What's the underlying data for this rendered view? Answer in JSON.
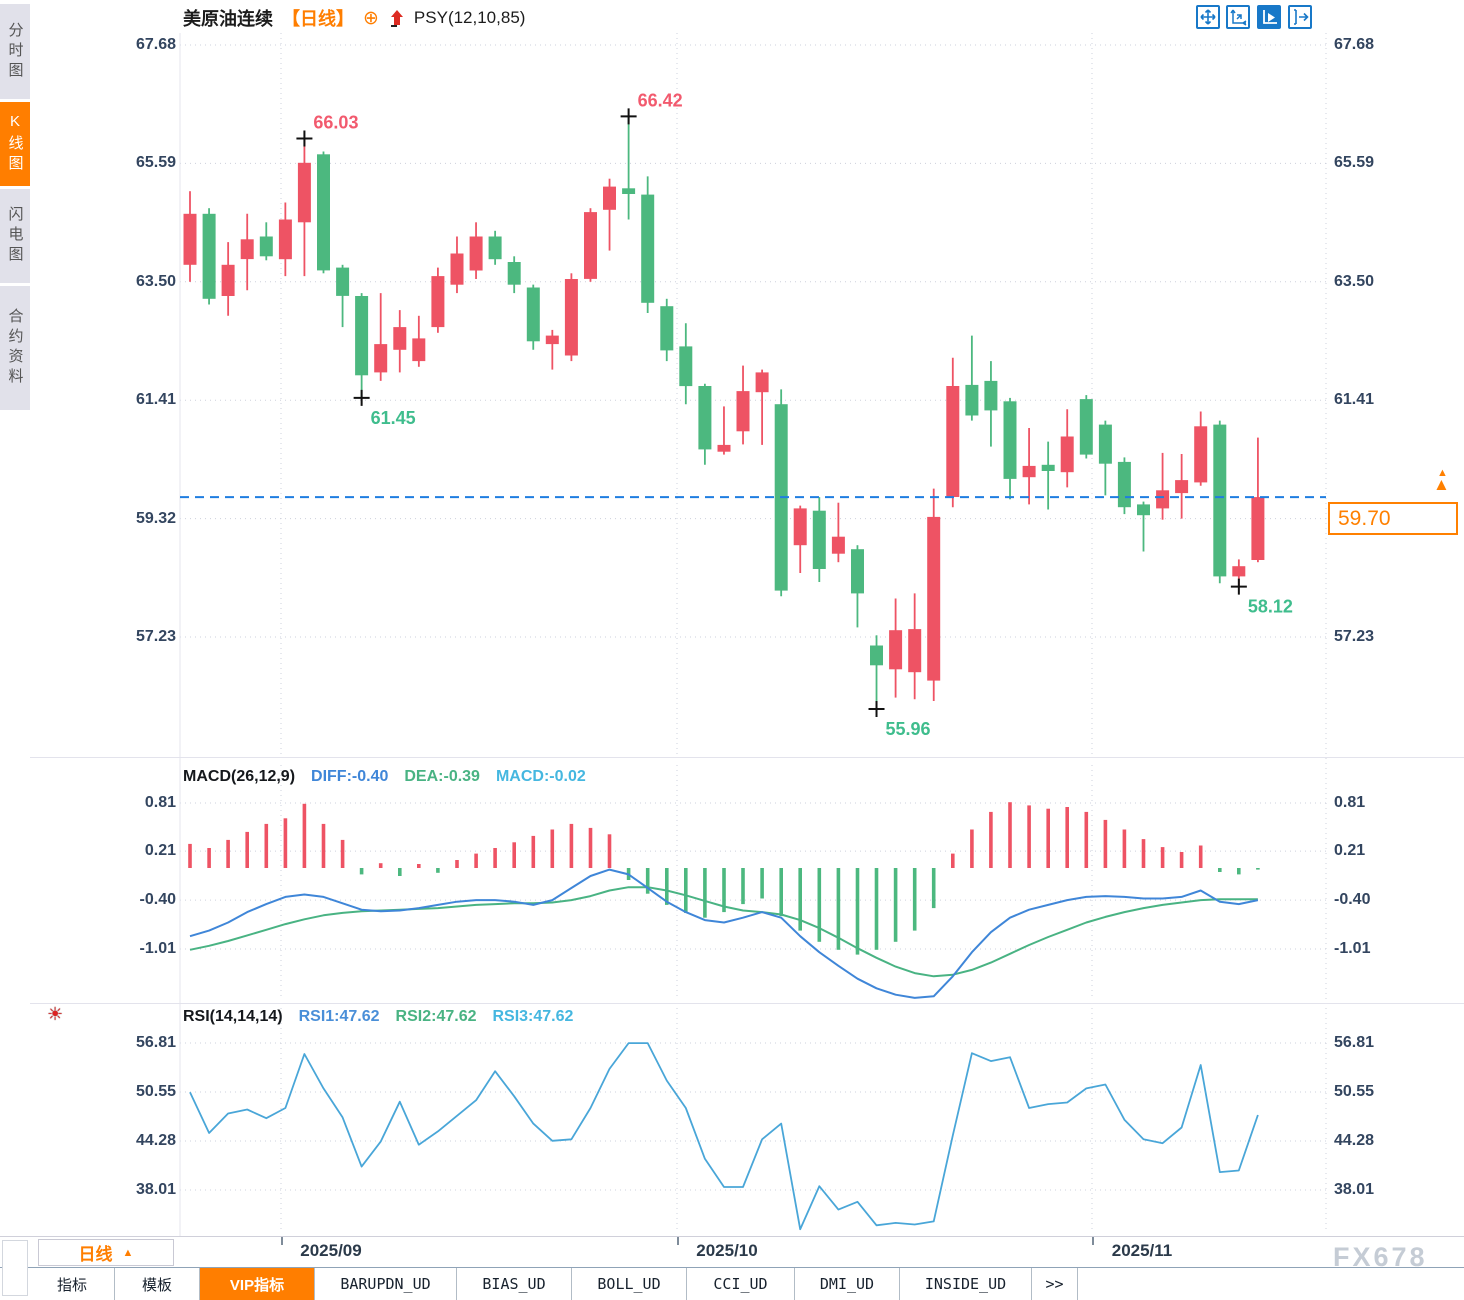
{
  "header": {
    "symbol": "美原油连续",
    "period_tag": "【日线】",
    "indicator": "PSY(12,10,85)"
  },
  "sidebar": {
    "items": [
      {
        "label": "分时图",
        "active": false
      },
      {
        "label": "K线图",
        "active": true
      },
      {
        "label": "闪电图",
        "active": false
      },
      {
        "label": "合约资料",
        "active": false
      }
    ]
  },
  "toolbar": {
    "icons": [
      "pan-icon",
      "axis-scale-icon",
      "chart-play-icon",
      "export-right-icon"
    ],
    "active_index": 2
  },
  "last_price": {
    "value": "59.70"
  },
  "price_axis": [
    "67.68",
    "65.59",
    "63.50",
    "61.41",
    "59.32",
    "57.23"
  ],
  "macd": {
    "title": "MACD(26,12,9)",
    "diff_label": "DIFF:-0.40",
    "dea_label": "DEA:-0.39",
    "macd_label": "MACD:-0.02",
    "axis": [
      "0.81",
      "0.21",
      "-0.40",
      "-1.01"
    ]
  },
  "rsi": {
    "title": "RSI(14,14,14)",
    "rsi1_label": "RSI1:47.62",
    "rsi2_label": "RSI2:47.62",
    "rsi3_label": "RSI3:47.62",
    "axis": [
      "56.81",
      "50.55",
      "44.28",
      "38.01"
    ]
  },
  "time_axis": {
    "period_label": "日线",
    "labels": [
      "2025/09",
      "2025/10",
      "2025/11"
    ]
  },
  "tabs": {
    "items": [
      "指标",
      "模板",
      "VIP指标",
      "BARUPDN_UD",
      "BIAS_UD",
      "BOLL_UD",
      "CCI_UD",
      "DMI_UD",
      "INSIDE_UD",
      ">>"
    ],
    "active_index": 2
  },
  "watermark": "FX678",
  "colors": {
    "up": "#ee5364",
    "down": "#4cb87f",
    "accent_orange": "#ff7e00",
    "dash_blue": "#1f7de0",
    "diff_blue": "#3f86d8",
    "dea_green": "#49b383",
    "macd_cyan": "#45b7e0",
    "rsi1": "#4a8fd8",
    "rsi2": "#49b383",
    "rsi3": "#49a6d8",
    "annotation_red": "#f25a6e",
    "annotation_green": "#3fbd8d"
  },
  "annotations": [
    {
      "text": "66.03",
      "index": 6,
      "at": "high"
    },
    {
      "text": "61.45",
      "index": 9,
      "at": "low"
    },
    {
      "text": "66.42",
      "index": 23,
      "at": "high"
    },
    {
      "text": "55.96",
      "index": 36,
      "at": "low"
    },
    {
      "text": "58.12",
      "index": 55,
      "at": "low"
    }
  ],
  "chart_data": [
    {
      "type": "candlestick",
      "title": "美原油连续 日线",
      "ylim": [
        55.5,
        67.68
      ],
      "y_ticks": [
        67.68,
        65.59,
        63.5,
        61.41,
        59.32,
        57.23
      ],
      "x_ticks": [
        "2025/09",
        "2025/10",
        "2025/11"
      ],
      "last_price": 59.7,
      "format": [
        "open",
        "high",
        "low",
        "close",
        "color r=red(up) g=green(down)"
      ],
      "candles": [
        [
          63.8,
          65.1,
          63.5,
          64.7,
          "r"
        ],
        [
          64.7,
          64.8,
          63.1,
          63.2,
          "g"
        ],
        [
          63.25,
          64.2,
          62.9,
          63.8,
          "r"
        ],
        [
          63.9,
          64.7,
          63.35,
          64.25,
          "r"
        ],
        [
          64.3,
          64.55,
          63.88,
          63.95,
          "g"
        ],
        [
          63.9,
          64.9,
          63.6,
          64.6,
          "r"
        ],
        [
          64.55,
          66.03,
          63.6,
          65.6,
          "r"
        ],
        [
          65.75,
          65.8,
          63.65,
          63.7,
          "g"
        ],
        [
          63.75,
          63.8,
          62.7,
          63.25,
          "g"
        ],
        [
          63.25,
          63.3,
          61.45,
          61.85,
          "g"
        ],
        [
          61.9,
          63.3,
          61.75,
          62.4,
          "r"
        ],
        [
          62.3,
          63.0,
          61.9,
          62.7,
          "r"
        ],
        [
          62.1,
          62.9,
          62.0,
          62.5,
          "r"
        ],
        [
          62.7,
          63.75,
          62.6,
          63.6,
          "r"
        ],
        [
          63.45,
          64.3,
          63.3,
          64.0,
          "r"
        ],
        [
          63.7,
          64.55,
          63.55,
          64.3,
          "r"
        ],
        [
          64.3,
          64.4,
          63.8,
          63.9,
          "g"
        ],
        [
          63.85,
          63.95,
          63.3,
          63.45,
          "g"
        ],
        [
          63.4,
          63.45,
          62.3,
          62.45,
          "g"
        ],
        [
          62.4,
          62.65,
          61.95,
          62.55,
          "r"
        ],
        [
          62.2,
          63.65,
          62.1,
          63.55,
          "r"
        ],
        [
          63.55,
          64.8,
          63.5,
          64.73,
          "r"
        ],
        [
          64.77,
          65.32,
          64.05,
          65.18,
          "r"
        ],
        [
          65.15,
          66.42,
          64.6,
          65.05,
          "g"
        ],
        [
          65.04,
          65.36,
          62.95,
          63.13,
          "g"
        ],
        [
          63.07,
          63.2,
          62.1,
          62.29,
          "g"
        ],
        [
          62.36,
          62.77,
          61.34,
          61.66,
          "g"
        ],
        [
          61.66,
          61.7,
          60.27,
          60.54,
          "g"
        ],
        [
          60.5,
          61.3,
          60.45,
          60.62,
          "r"
        ],
        [
          60.86,
          62.02,
          60.63,
          61.57,
          "r"
        ],
        [
          61.55,
          61.95,
          60.62,
          61.9,
          "r"
        ],
        [
          61.34,
          61.6,
          57.95,
          58.05,
          "g"
        ],
        [
          58.85,
          59.55,
          58.36,
          59.5,
          "r"
        ],
        [
          59.46,
          59.7,
          58.2,
          58.43,
          "g"
        ],
        [
          58.7,
          59.6,
          58.55,
          59.0,
          "r"
        ],
        [
          58.78,
          58.85,
          57.4,
          58.0,
          "g"
        ],
        [
          57.08,
          57.26,
          55.96,
          56.73,
          "g"
        ],
        [
          56.66,
          57.91,
          56.16,
          57.35,
          "r"
        ],
        [
          56.61,
          58.0,
          56.13,
          57.37,
          "r"
        ],
        [
          56.46,
          59.85,
          56.1,
          59.35,
          "r"
        ],
        [
          59.7,
          62.16,
          59.52,
          61.66,
          "r"
        ],
        [
          61.68,
          62.55,
          61.05,
          61.14,
          "g"
        ],
        [
          61.75,
          62.1,
          60.59,
          61.23,
          "g"
        ],
        [
          61.39,
          61.45,
          59.66,
          60.02,
          "g"
        ],
        [
          60.05,
          60.92,
          59.57,
          60.25,
          "r"
        ],
        [
          60.27,
          60.68,
          59.48,
          60.16,
          "g"
        ],
        [
          60.14,
          61.25,
          59.87,
          60.77,
          "r"
        ],
        [
          61.43,
          61.5,
          60.38,
          60.45,
          "g"
        ],
        [
          60.98,
          61.05,
          59.73,
          60.29,
          "g"
        ],
        [
          60.32,
          60.4,
          59.4,
          59.52,
          "g"
        ],
        [
          59.57,
          59.62,
          58.74,
          59.38,
          "g"
        ],
        [
          59.5,
          60.48,
          59.3,
          59.82,
          "r"
        ],
        [
          59.77,
          60.46,
          59.32,
          60.0,
          "r"
        ],
        [
          59.96,
          61.21,
          59.9,
          60.95,
          "r"
        ],
        [
          60.98,
          61.05,
          58.18,
          58.3,
          "g"
        ],
        [
          58.3,
          58.6,
          58.12,
          58.48,
          "r"
        ],
        [
          58.59,
          60.75,
          58.55,
          59.7,
          "r"
        ]
      ]
    },
    {
      "type": "bar+line",
      "title": "MACD(26,12,9)",
      "y_ticks": [
        0.81,
        0.21,
        -0.4,
        -1.01
      ],
      "last": {
        "DIFF": -0.4,
        "DEA": -0.39,
        "MACD": -0.02
      },
      "series": [
        {
          "name": "DIFF",
          "values": [
            -0.85,
            -0.78,
            -0.68,
            -0.55,
            -0.45,
            -0.36,
            -0.33,
            -0.36,
            -0.44,
            -0.52,
            -0.54,
            -0.53,
            -0.5,
            -0.46,
            -0.42,
            -0.4,
            -0.4,
            -0.42,
            -0.46,
            -0.4,
            -0.25,
            -0.1,
            -0.02,
            -0.08,
            -0.25,
            -0.42,
            -0.55,
            -0.65,
            -0.68,
            -0.62,
            -0.55,
            -0.62,
            -0.85,
            -1.05,
            -1.22,
            -1.38,
            -1.5,
            -1.58,
            -1.62,
            -1.6,
            -1.35,
            -1.05,
            -0.8,
            -0.62,
            -0.52,
            -0.46,
            -0.4,
            -0.36,
            -0.35,
            -0.36,
            -0.38,
            -0.38,
            -0.36,
            -0.28,
            -0.42,
            -0.45,
            -0.4
          ]
        },
        {
          "name": "DEA",
          "values": [
            -1.02,
            -0.97,
            -0.91,
            -0.84,
            -0.77,
            -0.7,
            -0.64,
            -0.59,
            -0.56,
            -0.54,
            -0.53,
            -0.52,
            -0.51,
            -0.5,
            -0.48,
            -0.46,
            -0.45,
            -0.44,
            -0.44,
            -0.43,
            -0.4,
            -0.35,
            -0.28,
            -0.24,
            -0.24,
            -0.28,
            -0.34,
            -0.41,
            -0.48,
            -0.53,
            -0.55,
            -0.58,
            -0.65,
            -0.75,
            -0.87,
            -1.0,
            -1.12,
            -1.23,
            -1.31,
            -1.35,
            -1.33,
            -1.27,
            -1.18,
            -1.07,
            -0.96,
            -0.86,
            -0.77,
            -0.68,
            -0.61,
            -0.55,
            -0.5,
            -0.46,
            -0.43,
            -0.4,
            -0.39,
            -0.39,
            -0.39
          ]
        },
        {
          "name": "MACD_hist",
          "values": [
            0.3,
            0.25,
            0.35,
            0.45,
            0.55,
            0.62,
            0.8,
            0.55,
            0.35,
            -0.08,
            0.06,
            -0.1,
            0.05,
            -0.06,
            0.1,
            0.18,
            0.25,
            0.32,
            0.4,
            0.48,
            0.55,
            0.5,
            0.42,
            -0.15,
            -0.32,
            -0.46,
            -0.56,
            -0.62,
            -0.55,
            -0.45,
            -0.38,
            -0.6,
            -0.78,
            -0.92,
            -1.02,
            -1.08,
            -1.02,
            -0.92,
            -0.78,
            -0.5,
            0.18,
            0.48,
            0.7,
            0.82,
            0.78,
            0.74,
            0.76,
            0.7,
            0.6,
            0.48,
            0.36,
            0.26,
            0.2,
            0.28,
            -0.05,
            -0.08,
            -0.02
          ]
        }
      ]
    },
    {
      "type": "line",
      "title": "RSI(14,14,14)",
      "y_ticks": [
        56.81,
        50.55,
        44.28,
        38.01
      ],
      "last": {
        "RSI1": 47.62,
        "RSI2": 47.62,
        "RSI3": 47.62
      },
      "note": "RSI1/RSI2/RSI3 share identical parameters so the three lines overlap as one",
      "series": [
        {
          "name": "RSI",
          "values": [
            50.5,
            45.3,
            47.8,
            48.3,
            47.2,
            48.5,
            55.4,
            51.0,
            47.3,
            41.0,
            44.2,
            49.3,
            43.8,
            45.5,
            47.5,
            49.5,
            53.2,
            50.0,
            46.5,
            44.3,
            44.5,
            48.5,
            53.5,
            56.8,
            56.8,
            52.0,
            48.5,
            42.0,
            38.4,
            38.4,
            44.5,
            46.5,
            33.0,
            38.5,
            35.5,
            36.5,
            33.5,
            33.8,
            33.6,
            34.0,
            45.0,
            55.5,
            54.5,
            55.0,
            48.5,
            49.0,
            49.2,
            51.0,
            51.5,
            47.0,
            44.5,
            44.0,
            46.0,
            54.0,
            40.3,
            40.5,
            47.6
          ]
        }
      ]
    }
  ]
}
